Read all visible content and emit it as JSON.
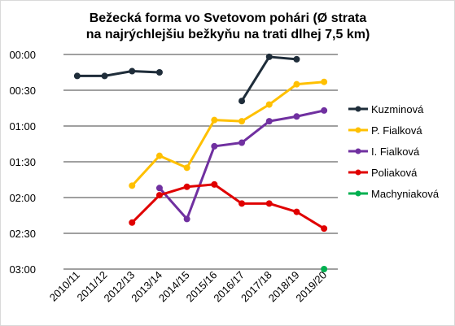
{
  "chart_data": {
    "type": "line",
    "title": [
      "Bežecká forma vo Svetovom pohári (Ø strata",
      "na najrýchlejšiu bežkyňu na trati dlhej 7,5 km)"
    ],
    "categories": [
      "2010/11",
      "2011/12",
      "2012/13",
      "2013/14",
      "2014/15",
      "2015/16",
      "2016/17",
      "2017/18",
      "2018/19",
      "2019/20"
    ],
    "y_ticks": [
      "00:00",
      "00:30",
      "01:00",
      "01:30",
      "02:00",
      "02:30",
      "03:00"
    ],
    "ylim_seconds": [
      0,
      180
    ],
    "y_axis_inverted": true,
    "grid": true,
    "legend_position": "right",
    "unit": "seconds",
    "series": [
      {
        "name": "Kuzminová",
        "color": "#1f2d3a",
        "values": [
          18,
          18,
          14,
          15,
          null,
          null,
          39,
          2,
          4,
          null
        ]
      },
      {
        "name": "P. Fialková",
        "color": "#ffc000",
        "values": [
          null,
          null,
          110,
          85,
          95,
          55,
          56,
          42,
          25,
          23
        ]
      },
      {
        "name": "I. Fialková",
        "color": "#7030a0",
        "values": [
          null,
          null,
          null,
          112,
          138,
          77,
          74,
          56,
          52,
          47
        ]
      },
      {
        "name": "Poliaková",
        "color": "#e00000",
        "values": [
          null,
          null,
          141,
          118,
          111,
          109,
          125,
          125,
          132,
          146
        ]
      },
      {
        "name": "Machyniaková",
        "color": "#00b050",
        "values": [
          null,
          null,
          null,
          null,
          null,
          null,
          null,
          null,
          null,
          180
        ]
      }
    ]
  }
}
